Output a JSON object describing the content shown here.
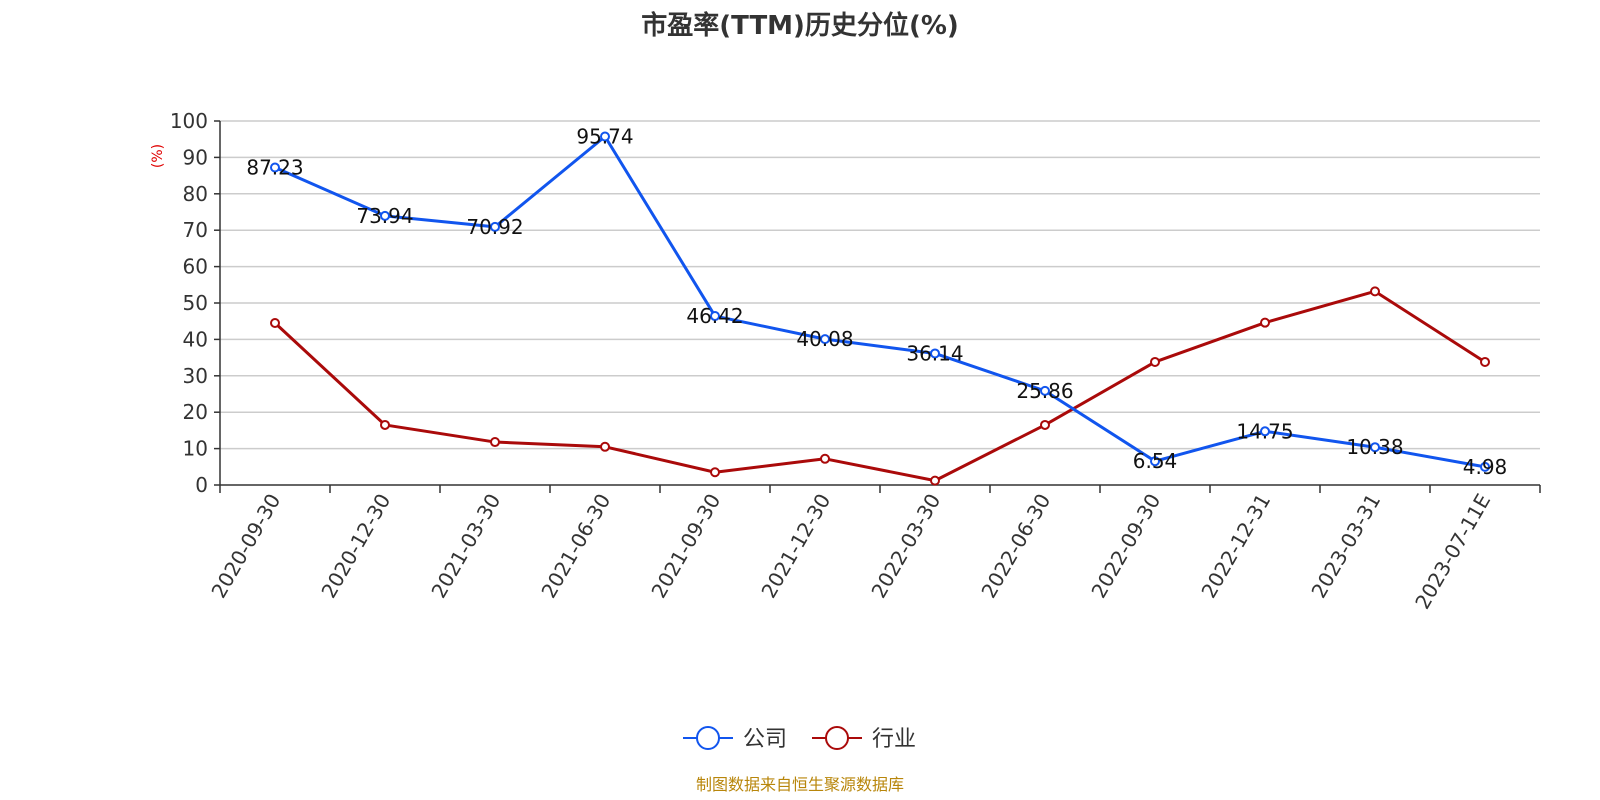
{
  "chart_data": {
    "type": "line",
    "title": "市盈率(TTM)历史分位(%)",
    "ylabel": "(%)",
    "ylim": [
      0,
      100
    ],
    "yticks": [
      0,
      10,
      20,
      30,
      40,
      50,
      60,
      70,
      80,
      90,
      100
    ],
    "categories": [
      "2020-09-30",
      "2020-12-30",
      "2021-03-30",
      "2021-06-30",
      "2021-09-30",
      "2021-12-30",
      "2022-03-30",
      "2022-06-30",
      "2022-09-30",
      "2022-12-31",
      "2023-03-31",
      "2023-07-11E"
    ],
    "grid": true,
    "legend_position": "bottom",
    "series": [
      {
        "name": "公司",
        "color": "#1155ee",
        "values": [
          87.23,
          73.94,
          70.92,
          95.74,
          46.42,
          40.08,
          36.14,
          25.86,
          6.54,
          14.75,
          10.38,
          4.98
        ],
        "labels": [
          "87.23",
          "73.94",
          "70.92",
          "95.74",
          "46.42",
          "40.08",
          "36.14",
          "25.86",
          "6.54",
          "14.75",
          "10.38",
          "4.98"
        ]
      },
      {
        "name": "行业",
        "color": "#aa0a0a",
        "values": [
          44.5,
          16.5,
          11.8,
          10.5,
          3.5,
          7.2,
          1.2,
          16.5,
          33.8,
          44.6,
          53.2,
          33.8
        ]
      }
    ]
  },
  "source_note": "制图数据来自恒生聚源数据库"
}
